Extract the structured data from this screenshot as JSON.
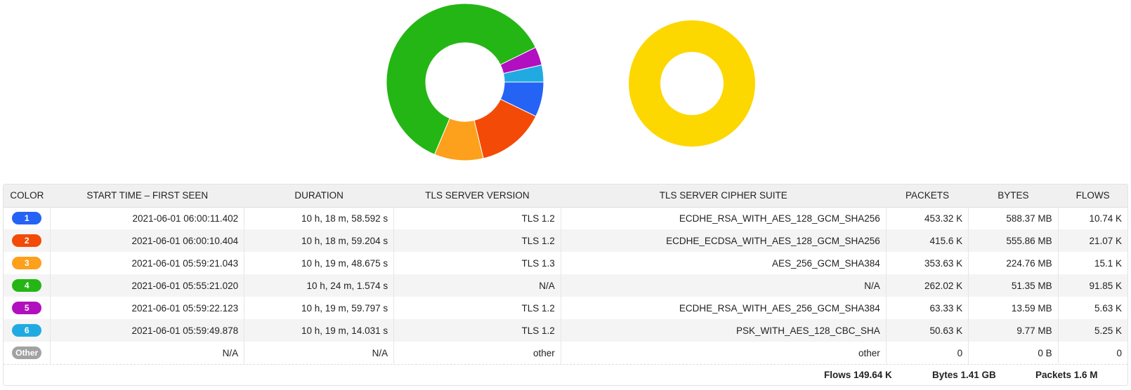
{
  "chart_data": [
    {
      "type": "pie",
      "slices": [
        {
          "label": "1",
          "value": 10.74,
          "color": "#2563f5"
        },
        {
          "label": "2",
          "value": 21.07,
          "color": "#f44a07"
        },
        {
          "label": "3",
          "value": 15.1,
          "color": "#fda01b"
        },
        {
          "label": "4",
          "value": 91.85,
          "color": "#24b614"
        },
        {
          "label": "5",
          "value": 5.63,
          "color": "#b10fbf"
        },
        {
          "label": "6",
          "value": 5.25,
          "color": "#21aae2"
        },
        {
          "label": "Other",
          "value": 0,
          "color": "#a2a2a2"
        }
      ]
    },
    {
      "type": "pie",
      "slices": [
        {
          "label": "",
          "value": 100,
          "color": "#fdd700"
        }
      ]
    }
  ],
  "table": {
    "headers": [
      "COLOR",
      "START TIME – FIRST SEEN",
      "DURATION",
      "TLS SERVER VERSION",
      "TLS SERVER CIPHER SUITE",
      "PACKETS",
      "BYTES",
      "FLOWS"
    ],
    "rows": [
      {
        "badge": "1",
        "color": "#2563f5",
        "start": "2021-06-01 06:00:11.402",
        "duration": "10 h, 18 m, 58.592 s",
        "version": "TLS 1.2",
        "cipher": "ECDHE_RSA_WITH_AES_128_GCM_SHA256",
        "packets": "453.32 K",
        "bytes": "588.37 MB",
        "flows": "10.74 K"
      },
      {
        "badge": "2",
        "color": "#f44a07",
        "start": "2021-06-01 06:00:10.404",
        "duration": "10 h, 18 m, 59.204 s",
        "version": "TLS 1.2",
        "cipher": "ECDHE_ECDSA_WITH_AES_128_GCM_SHA256",
        "packets": "415.6 K",
        "bytes": "555.86 MB",
        "flows": "21.07 K"
      },
      {
        "badge": "3",
        "color": "#fda01b",
        "start": "2021-06-01 05:59:21.043",
        "duration": "10 h, 19 m, 48.675 s",
        "version": "TLS 1.3",
        "cipher": "AES_256_GCM_SHA384",
        "packets": "353.63 K",
        "bytes": "224.76 MB",
        "flows": "15.1 K"
      },
      {
        "badge": "4",
        "color": "#24b614",
        "start": "2021-06-01 05:55:21.020",
        "duration": "10 h, 24 m, 1.574 s",
        "version": "N/A",
        "cipher": "N/A",
        "packets": "262.02 K",
        "bytes": "51.35 MB",
        "flows": "91.85 K"
      },
      {
        "badge": "5",
        "color": "#b10fbf",
        "start": "2021-06-01 05:59:22.123",
        "duration": "10 h, 19 m, 59.797 s",
        "version": "TLS 1.2",
        "cipher": "ECDHE_RSA_WITH_AES_256_GCM_SHA384",
        "packets": "63.33 K",
        "bytes": "13.59 MB",
        "flows": "5.63 K"
      },
      {
        "badge": "6",
        "color": "#21aae2",
        "start": "2021-06-01 05:59:49.878",
        "duration": "10 h, 19 m, 14.031 s",
        "version": "TLS 1.2",
        "cipher": "PSK_WITH_AES_128_CBC_SHA",
        "packets": "50.63 K",
        "bytes": "9.77 MB",
        "flows": "5.25 K"
      },
      {
        "badge": "Other",
        "color": "#a2a2a2",
        "start": "N/A",
        "duration": "N/A",
        "version": "other",
        "cipher": "other",
        "packets": "0",
        "bytes": "0 B",
        "flows": "0"
      }
    ]
  },
  "footer": {
    "flows": "Flows 149.64 K",
    "bytes": "Bytes 1.41 GB",
    "packets": "Packets 1.6 M"
  }
}
